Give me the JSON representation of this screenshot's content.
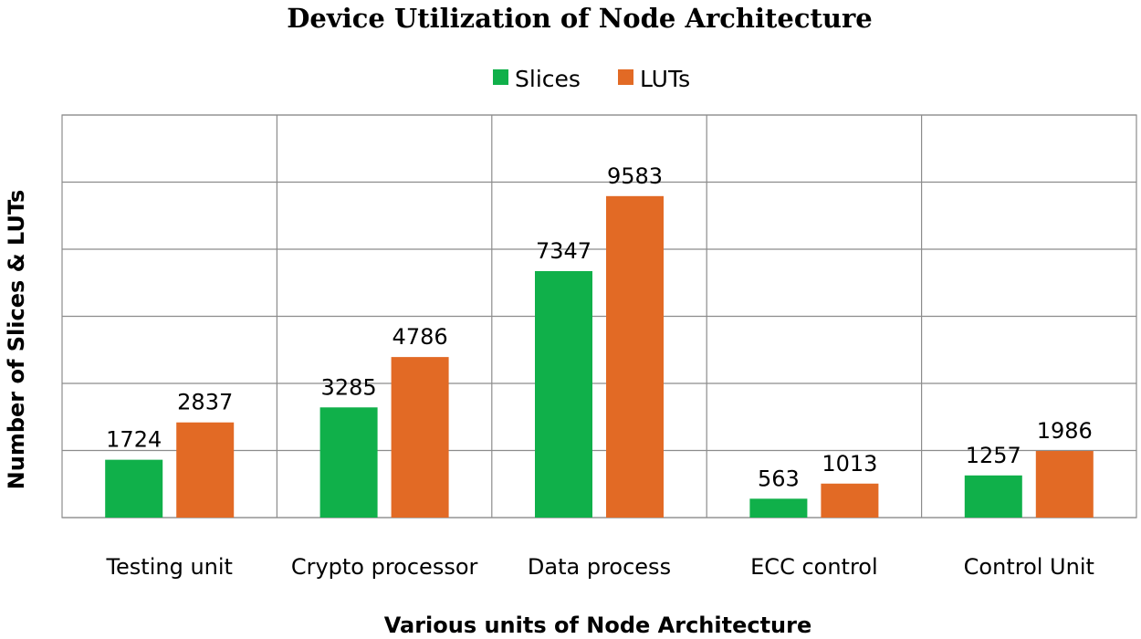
{
  "chart_data": {
    "type": "bar",
    "title": "Device Utilization of Node Architecture",
    "xlabel": "Various units of Node Architecture",
    "ylabel": "Number of Slices & LUTs",
    "categories": [
      "Testing unit",
      "Crypto processor",
      "Data process",
      "ECC control",
      "Control Unit"
    ],
    "series": [
      {
        "name": "Slices",
        "color": "#10b04a",
        "values": [
          1724,
          3285,
          7347,
          563,
          1257
        ]
      },
      {
        "name": "LUTs",
        "color": "#e26a25",
        "values": [
          2837,
          4786,
          9583,
          1013,
          1986
        ]
      }
    ],
    "ylim": [
      0,
      12000
    ],
    "y_gridline_step": 2000,
    "grid": true,
    "legend": "top-center",
    "data_labels": true,
    "y_tick_labels_shown": false
  }
}
